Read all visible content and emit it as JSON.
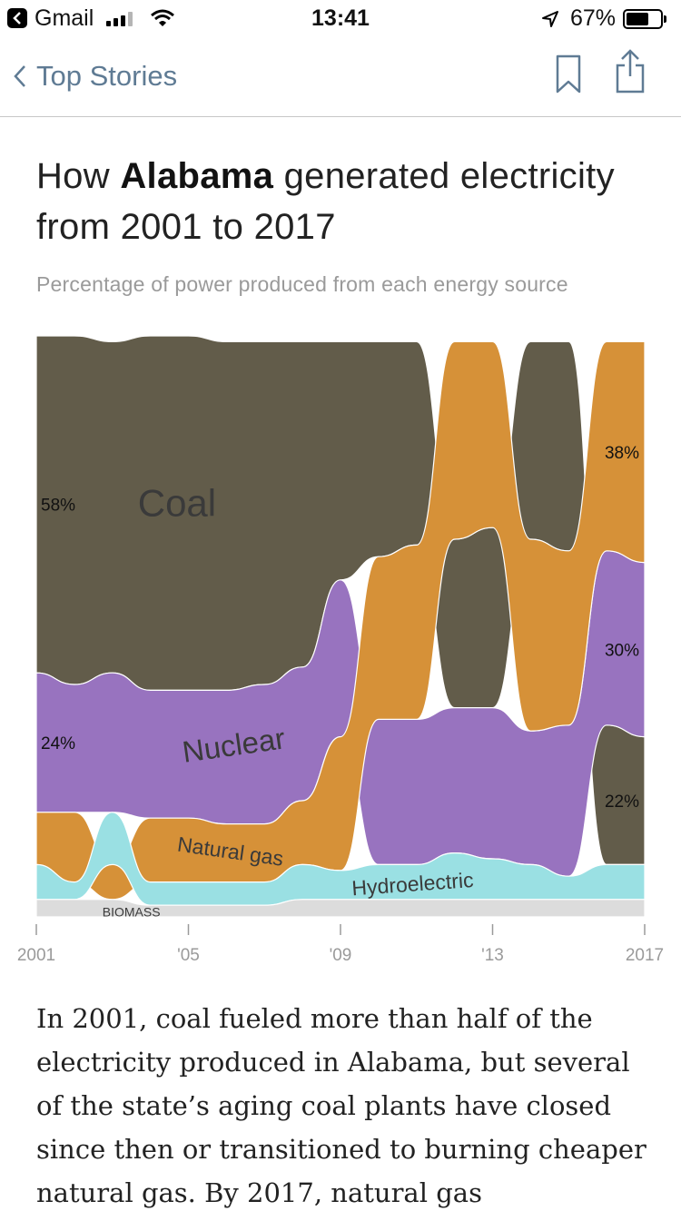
{
  "status_bar": {
    "app": "Gmail",
    "time": "13:41",
    "battery": "67%",
    "battery_level": 0.67
  },
  "nav": {
    "back_label": "Top Stories"
  },
  "headline": {
    "prefix": "How ",
    "state": "Alabama",
    "suffix": " generated electricity from 2001 to 2017"
  },
  "subhead": "Percentage of power produced from each energy source",
  "chart_data": {
    "type": "area",
    "title": "How Alabama generated electricity from 2001 to 2017",
    "subtitle": "Percentage of power produced from each energy source",
    "x": [
      2001,
      2002,
      2003,
      2004,
      2005,
      2006,
      2007,
      2008,
      2009,
      2010,
      2011,
      2012,
      2013,
      2014,
      2015,
      2016,
      2017
    ],
    "x_tick_labels": [
      "2001",
      "'05",
      "'09",
      "'13",
      "2017"
    ],
    "ylim": [
      0,
      100
    ],
    "stacking": "ranked, largest source on top each year",
    "series": [
      {
        "name": "Coal",
        "color": "#625c4a",
        "values": [
          58,
          60,
          57,
          61,
          61,
          60,
          59,
          56,
          41,
          37,
          35,
          29,
          31,
          34,
          36,
          24,
          22
        ]
      },
      {
        "name": "Nuclear",
        "color": "#9873bf",
        "values": [
          24,
          22,
          24,
          22,
          22,
          23,
          24,
          23,
          27,
          25,
          25,
          25,
          26,
          23,
          26,
          30,
          30
        ]
      },
      {
        "name": "Natural gas",
        "color": "#d69138",
        "values": [
          9,
          12,
          6,
          11,
          11,
          10,
          10,
          11,
          23,
          28,
          30,
          34,
          32,
          33,
          30,
          36,
          38
        ]
      },
      {
        "name": "Hydroelectric",
        "color": "#9ae0e3",
        "values": [
          6,
          3,
          9,
          4,
          4,
          4,
          4,
          6,
          5,
          6,
          6,
          8,
          7,
          6,
          4,
          6,
          6
        ]
      },
      {
        "name": "Biomass",
        "color": "#dcdcdc",
        "values": [
          3,
          3,
          3,
          2,
          2,
          2,
          2,
          3,
          3,
          3,
          3,
          3,
          3,
          3,
          3,
          3,
          3
        ]
      }
    ],
    "annotations": [
      {
        "text": "58%",
        "series": "Coal",
        "x": 2001
      },
      {
        "text": "24%",
        "series": "Nuclear",
        "x": 2001
      },
      {
        "text": "38%",
        "series": "Natural gas",
        "x": 2017
      },
      {
        "text": "30%",
        "series": "Nuclear",
        "x": 2017
      },
      {
        "text": "22%",
        "series": "Coal",
        "x": 2017
      }
    ],
    "inline_labels": [
      "Coal",
      "Nuclear",
      "Natural gas",
      "Hydroelectric",
      "BIOMASS"
    ],
    "grid": false,
    "legend": "none (labels on areas)"
  },
  "article": {
    "text": "In 2001, coal fueled more than half of the electricity produced in Alabama, but several of the state’s aging coal plants have closed since then or transitioned to burning cheaper natural gas. By 2017, natural gas"
  }
}
